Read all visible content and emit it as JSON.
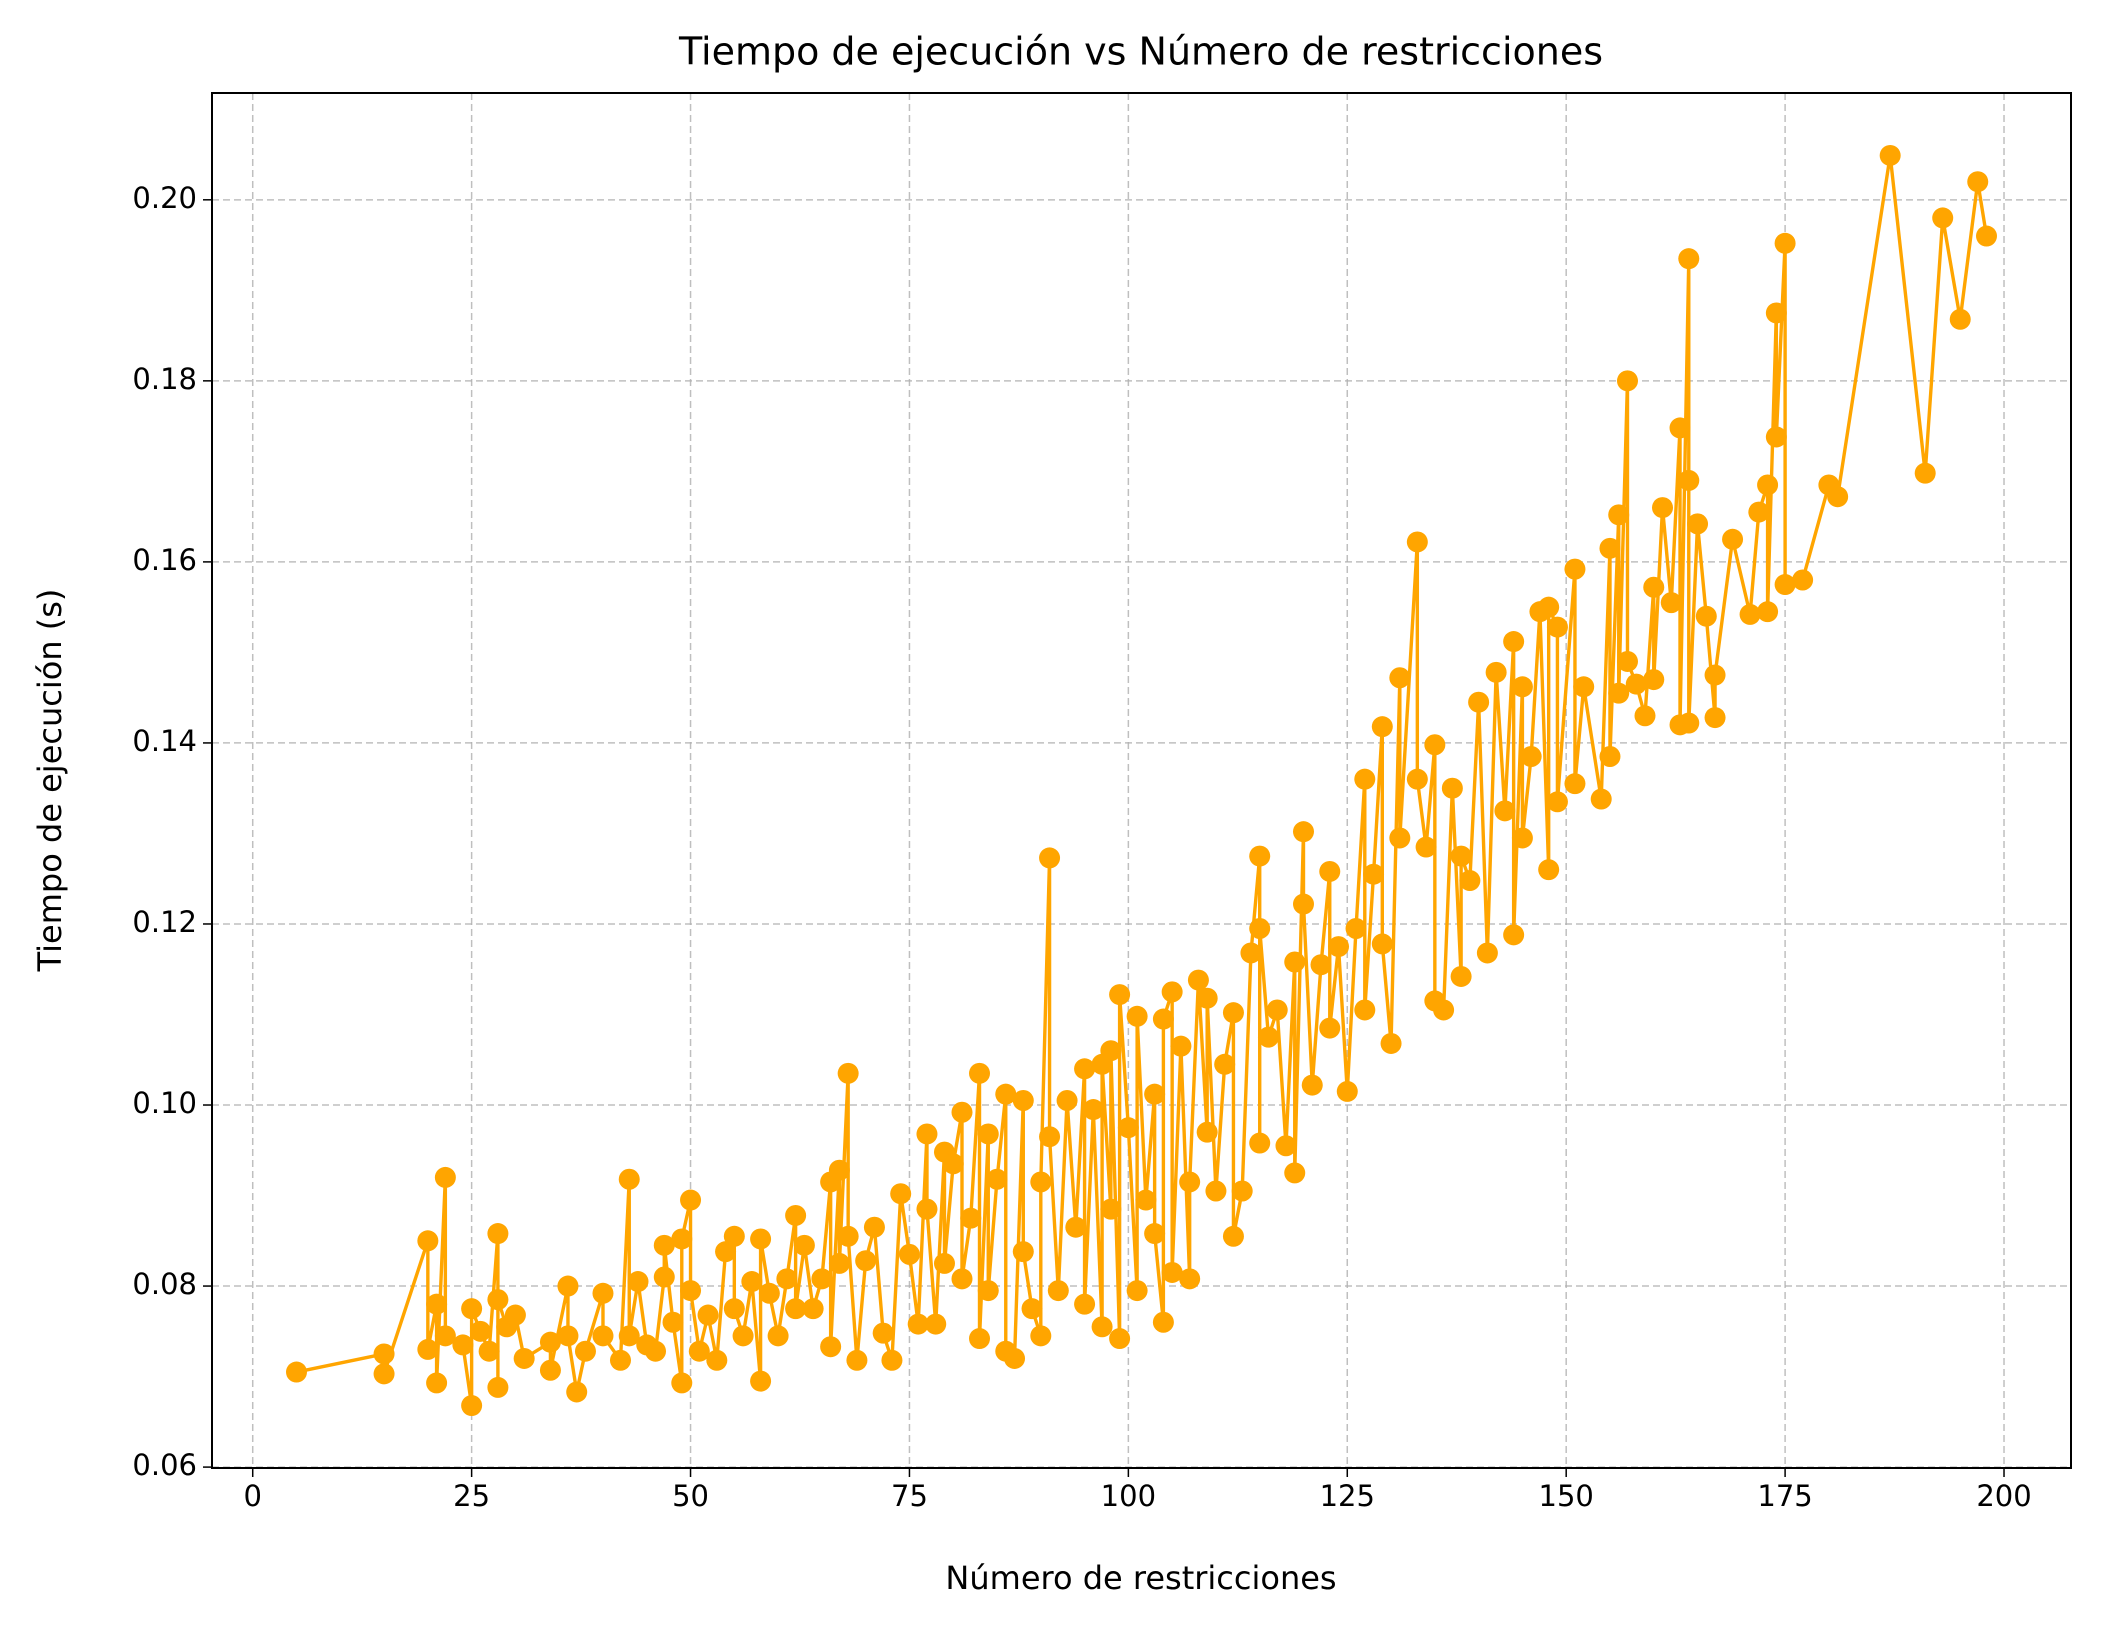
{
  "chart_data": {
    "type": "line",
    "title": "Tiempo de ejecución vs Número de restricciones",
    "x_label": "Número de restricciones",
    "y_label": "Tiempo de ejecución (s)",
    "color": "#ffa500",
    "grid": true,
    "xlim": [
      -4.65,
      207.65
    ],
    "ylim": [
      0.0599,
      0.2118
    ],
    "xticks": [
      0,
      25,
      50,
      75,
      100,
      125,
      150,
      175,
      200
    ],
    "yticks": [
      0.06,
      0.08,
      {
        "value": 0.1,
        "label": "0.10"
      },
      0.12,
      0.14,
      0.16,
      0.18,
      {
        "value": 0.2,
        "label": "0.20"
      }
    ],
    "x": [
      5,
      15,
      15,
      20,
      20,
      21,
      21,
      22,
      22,
      24,
      25,
      25,
      26,
      27,
      28,
      28,
      28,
      29,
      30,
      31,
      34,
      34,
      36,
      36,
      37,
      38,
      40,
      40,
      42,
      43,
      43,
      44,
      45,
      46,
      47,
      47,
      48,
      49,
      49,
      50,
      50,
      51,
      52,
      53,
      54,
      55,
      55,
      56,
      57,
      58,
      58,
      59,
      60,
      61,
      62,
      62,
      63,
      64,
      65,
      66,
      66,
      67,
      67,
      68,
      68,
      69,
      70,
      71,
      72,
      73,
      74,
      75,
      76,
      77,
      77,
      78,
      79,
      79,
      80,
      81,
      81,
      82,
      83,
      83,
      84,
      84,
      85,
      86,
      86,
      87,
      88,
      88,
      89,
      90,
      90,
      91,
      91,
      92,
      93,
      94,
      95,
      95,
      96,
      97,
      97,
      98,
      98,
      99,
      99,
      100,
      101,
      101,
      102,
      103,
      103,
      104,
      104,
      105,
      105,
      106,
      107,
      107,
      108,
      109,
      109,
      110,
      111,
      112,
      112,
      113,
      114,
      115,
      115,
      115,
      116,
      117,
      118,
      119,
      119,
      120,
      120,
      121,
      122,
      123,
      123,
      124,
      125,
      126,
      127,
      127,
      128,
      129,
      129,
      130,
      131,
      131,
      133,
      133,
      134,
      135,
      135,
      136,
      137,
      138,
      138,
      139,
      140,
      141,
      142,
      143,
      144,
      144,
      145,
      145,
      146,
      147,
      148,
      148,
      149,
      149,
      151,
      151,
      152,
      154,
      155,
      155,
      156,
      156,
      157,
      157,
      158,
      159,
      160,
      160,
      161,
      162,
      163,
      163,
      164,
      164,
      164,
      165,
      166,
      167,
      167,
      169,
      171,
      172,
      173,
      173,
      174,
      174,
      175,
      175,
      177,
      180,
      181,
      187,
      191,
      193,
      195,
      197,
      198
    ],
    "values": [
      0.0705,
      0.0725,
      0.0703,
      0.085,
      0.073,
      0.078,
      0.0693,
      0.092,
      0.0745,
      0.0735,
      0.0668,
      0.0775,
      0.075,
      0.0728,
      0.0858,
      0.0688,
      0.0785,
      0.0755,
      0.0768,
      0.072,
      0.0738,
      0.0707,
      0.08,
      0.0745,
      0.0683,
      0.0728,
      0.0792,
      0.0745,
      0.0718,
      0.0918,
      0.0745,
      0.0805,
      0.0735,
      0.0728,
      0.081,
      0.0845,
      0.076,
      0.0693,
      0.0852,
      0.0895,
      0.0795,
      0.0728,
      0.0768,
      0.0718,
      0.0838,
      0.0855,
      0.0775,
      0.0745,
      0.0805,
      0.0695,
      0.0852,
      0.0792,
      0.0745,
      0.0808,
      0.0878,
      0.0775,
      0.0845,
      0.0775,
      0.0808,
      0.0915,
      0.0733,
      0.0928,
      0.0825,
      0.1035,
      0.0855,
      0.0718,
      0.0828,
      0.0865,
      0.0748,
      0.0718,
      0.0902,
      0.0835,
      0.0758,
      0.0968,
      0.0885,
      0.0758,
      0.0948,
      0.0825,
      0.0935,
      0.0992,
      0.0808,
      0.0875,
      0.1035,
      0.0742,
      0.0968,
      0.0795,
      0.0918,
      0.1012,
      0.0728,
      0.072,
      0.1005,
      0.0838,
      0.0775,
      0.0745,
      0.0915,
      0.1273,
      0.0965,
      0.0795,
      0.1005,
      0.0865,
      0.104,
      0.078,
      0.0995,
      0.0755,
      0.1045,
      0.0885,
      0.106,
      0.0742,
      0.1122,
      0.0975,
      0.0795,
      0.1098,
      0.0895,
      0.1012,
      0.0858,
      0.076,
      0.1095,
      0.1125,
      0.0815,
      0.1065,
      0.0808,
      0.0915,
      0.1138,
      0.097,
      0.1118,
      0.0905,
      0.1045,
      0.1102,
      0.0855,
      0.0905,
      0.1168,
      0.1275,
      0.0958,
      0.1195,
      0.1075,
      0.1105,
      0.0955,
      0.1158,
      0.0925,
      0.1302,
      0.1222,
      0.1022,
      0.1155,
      0.1258,
      0.1085,
      0.1175,
      0.1015,
      0.1195,
      0.136,
      0.1105,
      0.1255,
      0.1418,
      0.1178,
      0.1068,
      0.1472,
      0.1295,
      0.1622,
      0.136,
      0.1285,
      0.1398,
      0.1115,
      0.1105,
      0.135,
      0.1142,
      0.1275,
      0.1248,
      0.1445,
      0.1168,
      0.1478,
      0.1325,
      0.1512,
      0.1188,
      0.1462,
      0.1295,
      0.1385,
      0.1545,
      0.126,
      0.155,
      0.1528,
      0.1335,
      0.1592,
      0.1355,
      0.1462,
      0.1338,
      0.1615,
      0.1385,
      0.1652,
      0.1455,
      0.18,
      0.149,
      0.1465,
      0.143,
      0.1572,
      0.147,
      0.166,
      0.1555,
      0.1748,
      0.142,
      0.1935,
      0.169,
      0.1422,
      0.1642,
      0.154,
      0.1428,
      0.1475,
      0.1625,
      0.1542,
      0.1655,
      0.1685,
      0.1545,
      0.1875,
      0.1738,
      0.1952,
      0.1575,
      0.158,
      0.1685,
      0.1672,
      0.2049,
      0.1698,
      0.198,
      0.1868,
      0.202,
      0.196
    ]
  }
}
